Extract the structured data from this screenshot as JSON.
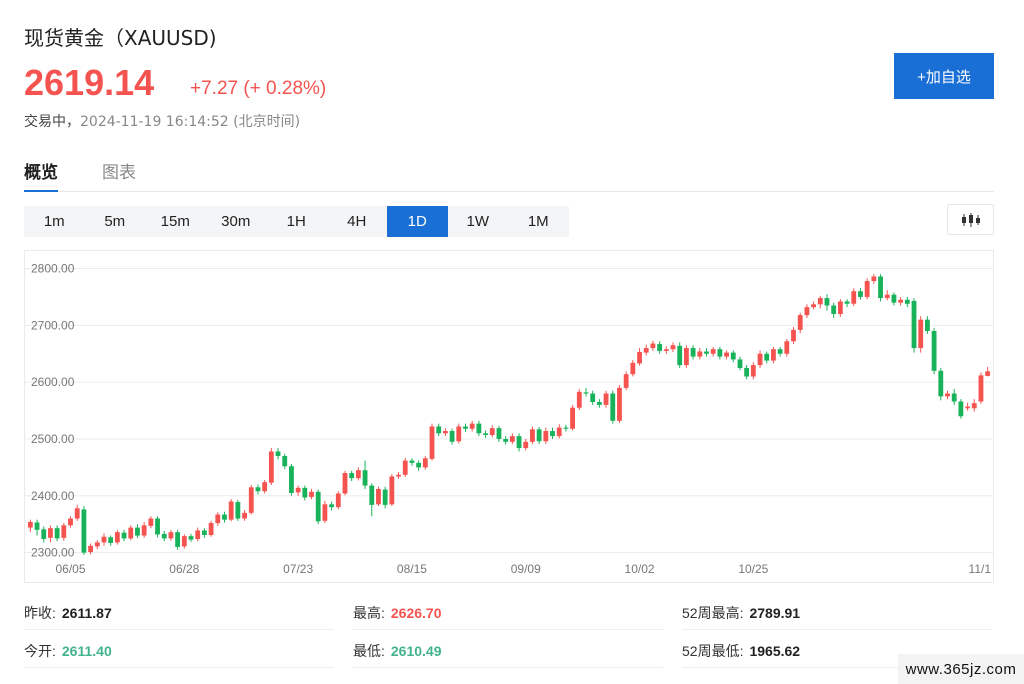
{
  "header": {
    "title": "现货黄金（XAUUSD)",
    "price": "2619.14",
    "change": "+7.27 (+ 0.28%)",
    "status": "交易中，",
    "timestamp": "2024-11-19 16:14:52 (北京时间)",
    "watch_label": "+加自选"
  },
  "colors": {
    "up": "#f5534f",
    "down": "#18b25a",
    "accent": "#1a6fd6",
    "neutral_value": "#41b38a"
  },
  "tabs": [
    {
      "label": "概览",
      "active": true
    },
    {
      "label": "图表",
      "active": false
    }
  ],
  "periods": [
    {
      "label": "1m",
      "active": false
    },
    {
      "label": "5m",
      "active": false
    },
    {
      "label": "15m",
      "active": false
    },
    {
      "label": "30m",
      "active": false
    },
    {
      "label": "1H",
      "active": false
    },
    {
      "label": "4H",
      "active": false
    },
    {
      "label": "1D",
      "active": true
    },
    {
      "label": "1W",
      "active": false
    },
    {
      "label": "1M",
      "active": false
    }
  ],
  "chart_type_icon": "candlestick-icon",
  "chart_data": {
    "type": "candlestick",
    "y_ticks": [
      "2800.00",
      "2700.00",
      "2600.00",
      "2500.00",
      "2400.00",
      "2300.00"
    ],
    "ylim": [
      2287,
      2815
    ],
    "x_ticks": [
      "06/05",
      "06/28",
      "07/23",
      "08/15",
      "09/09",
      "10/02",
      "10/25",
      "11/1"
    ],
    "x_tick_index": [
      6,
      23,
      40,
      57,
      74,
      91,
      108,
      125
    ],
    "grid": true,
    "candles": [
      [
        2344,
        2354,
        2336,
        2358
      ],
      [
        2353,
        2340,
        2330,
        2358
      ],
      [
        2341,
        2324,
        2318,
        2346
      ],
      [
        2326,
        2343,
        2318,
        2348
      ],
      [
        2343,
        2325,
        2320,
        2348
      ],
      [
        2326,
        2348,
        2321,
        2352
      ],
      [
        2348,
        2360,
        2344,
        2364
      ],
      [
        2360,
        2378,
        2356,
        2384
      ],
      [
        2376,
        2300,
        2296,
        2382
      ],
      [
        2301,
        2312,
        2297,
        2316
      ],
      [
        2311,
        2318,
        2306,
        2322
      ],
      [
        2318,
        2328,
        2312,
        2334
      ],
      [
        2327,
        2317,
        2312,
        2330
      ],
      [
        2318,
        2336,
        2314,
        2340
      ],
      [
        2335,
        2325,
        2320,
        2340
      ],
      [
        2325,
        2344,
        2322,
        2348
      ],
      [
        2344,
        2330,
        2326,
        2350
      ],
      [
        2330,
        2348,
        2326,
        2354
      ],
      [
        2347,
        2360,
        2343,
        2364
      ],
      [
        2360,
        2332,
        2327,
        2364
      ],
      [
        2333,
        2325,
        2320,
        2338
      ],
      [
        2325,
        2336,
        2321,
        2340
      ],
      [
        2336,
        2310,
        2305,
        2340
      ],
      [
        2311,
        2329,
        2307,
        2332
      ],
      [
        2329,
        2323,
        2319,
        2333
      ],
      [
        2324,
        2339,
        2320,
        2344
      ],
      [
        2339,
        2331,
        2326,
        2343
      ],
      [
        2331,
        2352,
        2328,
        2356
      ],
      [
        2352,
        2367,
        2347,
        2371
      ],
      [
        2367,
        2358,
        2353,
        2372
      ],
      [
        2358,
        2390,
        2355,
        2394
      ],
      [
        2389,
        2360,
        2356,
        2393
      ],
      [
        2360,
        2370,
        2356,
        2375
      ],
      [
        2370,
        2415,
        2367,
        2419
      ],
      [
        2415,
        2408,
        2402,
        2420
      ],
      [
        2408,
        2424,
        2404,
        2428
      ],
      [
        2423,
        2478,
        2419,
        2484
      ],
      [
        2478,
        2470,
        2464,
        2484
      ],
      [
        2470,
        2452,
        2447,
        2474
      ],
      [
        2452,
        2405,
        2400,
        2456
      ],
      [
        2406,
        2414,
        2400,
        2418
      ],
      [
        2414,
        2397,
        2392,
        2418
      ],
      [
        2398,
        2407,
        2394,
        2412
      ],
      [
        2407,
        2355,
        2350,
        2411
      ],
      [
        2356,
        2385,
        2352,
        2391
      ],
      [
        2385,
        2380,
        2374,
        2390
      ],
      [
        2380,
        2404,
        2376,
        2408
      ],
      [
        2404,
        2440,
        2401,
        2444
      ],
      [
        2440,
        2431,
        2426,
        2444
      ],
      [
        2431,
        2445,
        2427,
        2450
      ],
      [
        2445,
        2418,
        2412,
        2462
      ],
      [
        2418,
        2384,
        2364,
        2422
      ],
      [
        2385,
        2412,
        2382,
        2416
      ],
      [
        2411,
        2384,
        2378,
        2416
      ],
      [
        2385,
        2434,
        2382,
        2438
      ],
      [
        2434,
        2437,
        2430,
        2442
      ],
      [
        2437,
        2462,
        2433,
        2467
      ],
      [
        2462,
        2458,
        2453,
        2466
      ],
      [
        2458,
        2450,
        2444,
        2462
      ],
      [
        2450,
        2466,
        2446,
        2470
      ],
      [
        2465,
        2522,
        2462,
        2527
      ],
      [
        2522,
        2510,
        2505,
        2527
      ],
      [
        2510,
        2514,
        2505,
        2519
      ],
      [
        2514,
        2495,
        2490,
        2518
      ],
      [
        2496,
        2522,
        2492,
        2527
      ],
      [
        2522,
        2518,
        2512,
        2527
      ],
      [
        2518,
        2527,
        2513,
        2532
      ],
      [
        2527,
        2510,
        2505,
        2532
      ],
      [
        2510,
        2507,
        2502,
        2515
      ],
      [
        2507,
        2519,
        2503,
        2524
      ],
      [
        2519,
        2500,
        2495,
        2523
      ],
      [
        2500,
        2495,
        2490,
        2505
      ],
      [
        2495,
        2505,
        2491,
        2510
      ],
      [
        2505,
        2484,
        2478,
        2510
      ],
      [
        2484,
        2495,
        2480,
        2500
      ],
      [
        2495,
        2517,
        2491,
        2522
      ],
      [
        2517,
        2496,
        2491,
        2521
      ],
      [
        2496,
        2514,
        2491,
        2520
      ],
      [
        2514,
        2505,
        2500,
        2520
      ],
      [
        2505,
        2520,
        2501,
        2526
      ],
      [
        2520,
        2518,
        2513,
        2525
      ],
      [
        2518,
        2555,
        2515,
        2560
      ],
      [
        2555,
        2583,
        2551,
        2588
      ],
      [
        2582,
        2580,
        2575,
        2590
      ],
      [
        2580,
        2565,
        2560,
        2585
      ],
      [
        2565,
        2560,
        2555,
        2570
      ],
      [
        2560,
        2580,
        2555,
        2585
      ],
      [
        2580,
        2532,
        2527,
        2585
      ],
      [
        2532,
        2590,
        2528,
        2595
      ],
      [
        2590,
        2614,
        2586,
        2619
      ],
      [
        2614,
        2634,
        2610,
        2639
      ],
      [
        2633,
        2653,
        2629,
        2660
      ],
      [
        2652,
        2660,
        2647,
        2666
      ],
      [
        2660,
        2668,
        2655,
        2673
      ],
      [
        2667,
        2655,
        2650,
        2672
      ],
      [
        2655,
        2658,
        2650,
        2663
      ],
      [
        2658,
        2665,
        2653,
        2670
      ],
      [
        2664,
        2630,
        2625,
        2670
      ],
      [
        2630,
        2660,
        2625,
        2665
      ],
      [
        2660,
        2645,
        2640,
        2665
      ],
      [
        2645,
        2654,
        2640,
        2660
      ],
      [
        2654,
        2650,
        2645,
        2660
      ],
      [
        2650,
        2658,
        2645,
        2662
      ],
      [
        2658,
        2645,
        2640,
        2662
      ],
      [
        2645,
        2652,
        2640,
        2656
      ],
      [
        2652,
        2640,
        2635,
        2656
      ],
      [
        2640,
        2625,
        2621,
        2645
      ],
      [
        2625,
        2610,
        2605,
        2630
      ],
      [
        2610,
        2630,
        2605,
        2635
      ],
      [
        2630,
        2650,
        2625,
        2656
      ],
      [
        2650,
        2638,
        2633,
        2654
      ],
      [
        2638,
        2658,
        2633,
        2662
      ],
      [
        2658,
        2650,
        2645,
        2662
      ],
      [
        2650,
        2672,
        2645,
        2676
      ],
      [
        2672,
        2692,
        2667,
        2697
      ],
      [
        2692,
        2718,
        2686,
        2722
      ],
      [
        2718,
        2732,
        2713,
        2737
      ],
      [
        2732,
        2737,
        2728,
        2742
      ],
      [
        2737,
        2748,
        2730,
        2752
      ],
      [
        2748,
        2735,
        2726,
        2755
      ],
      [
        2735,
        2720,
        2713,
        2740
      ],
      [
        2720,
        2742,
        2715,
        2746
      ],
      [
        2742,
        2738,
        2732,
        2746
      ],
      [
        2738,
        2760,
        2734,
        2765
      ],
      [
        2760,
        2750,
        2745,
        2766
      ],
      [
        2750,
        2778,
        2746,
        2783
      ],
      [
        2778,
        2786,
        2773,
        2790
      ],
      [
        2786,
        2748,
        2742,
        2790
      ],
      [
        2748,
        2754,
        2744,
        2762
      ],
      [
        2754,
        2740,
        2735,
        2758
      ],
      [
        2740,
        2745,
        2735,
        2750
      ],
      [
        2745,
        2738,
        2732,
        2750
      ],
      [
        2743,
        2660,
        2652,
        2748
      ],
      [
        2660,
        2710,
        2652,
        2716
      ],
      [
        2710,
        2690,
        2685,
        2716
      ],
      [
        2690,
        2620,
        2614,
        2695
      ],
      [
        2620,
        2575,
        2568,
        2625
      ],
      [
        2575,
        2580,
        2570,
        2585
      ],
      [
        2580,
        2566,
        2560,
        2588
      ],
      [
        2566,
        2540,
        2536,
        2570
      ],
      [
        2554,
        2557,
        2550,
        2564
      ],
      [
        2554,
        2563,
        2548,
        2570
      ],
      [
        2566,
        2612,
        2562,
        2617
      ],
      [
        2611,
        2619,
        2610,
        2627
      ]
    ]
  },
  "stats": [
    {
      "label": "昨收:",
      "value": "2611.87",
      "tone": "neutral"
    },
    {
      "label": "最高:",
      "value": "2626.70",
      "tone": "up"
    },
    {
      "label": "52周最高:",
      "value": "2789.91",
      "tone": "neutral"
    },
    {
      "label": "今开:",
      "value": "2611.40",
      "tone": "green"
    },
    {
      "label": "最低:",
      "value": "2610.49",
      "tone": "green"
    },
    {
      "label": "52周最低:",
      "value": "1965.62",
      "tone": "neutral"
    }
  ],
  "watermark": "www.365jz.com"
}
